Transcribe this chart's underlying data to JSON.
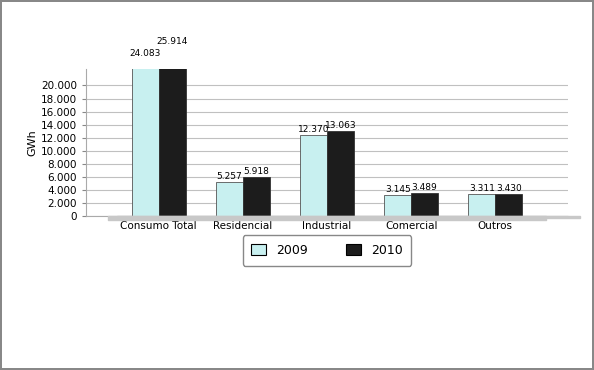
{
  "categories": [
    "Consumo Total",
    "Residencial",
    "Industrial",
    "Comercial",
    "Outros"
  ],
  "values_2009": [
    24083,
    5257,
    12370,
    3145,
    3311
  ],
  "values_2010": [
    25914,
    5918,
    13063,
    3489,
    3430
  ],
  "labels_2009": [
    "24.083",
    "5.257",
    "12.370",
    "3.145",
    "3.311"
  ],
  "labels_2010": [
    "25.914",
    "5.918",
    "13.063",
    "3.489",
    "3.430"
  ],
  "color_2009": "#c8f0f0",
  "color_2010": "#1c1c1c",
  "ylabel": "GWh",
  "legend_2009": "2009",
  "legend_2010": "2010",
  "ylim_max": 22500,
  "yticks": [
    0,
    2000,
    4000,
    6000,
    8000,
    10000,
    12000,
    14000,
    16000,
    18000,
    20000
  ],
  "bar_width": 0.32,
  "background_plot": "#ffffff",
  "background_fig": "#ffffff",
  "grid_color": "#c0c0c0",
  "shadow_color": "#c8c8c8",
  "label_fontsize": 6.5,
  "tick_fontsize": 7.5,
  "ylabel_fontsize": 8
}
